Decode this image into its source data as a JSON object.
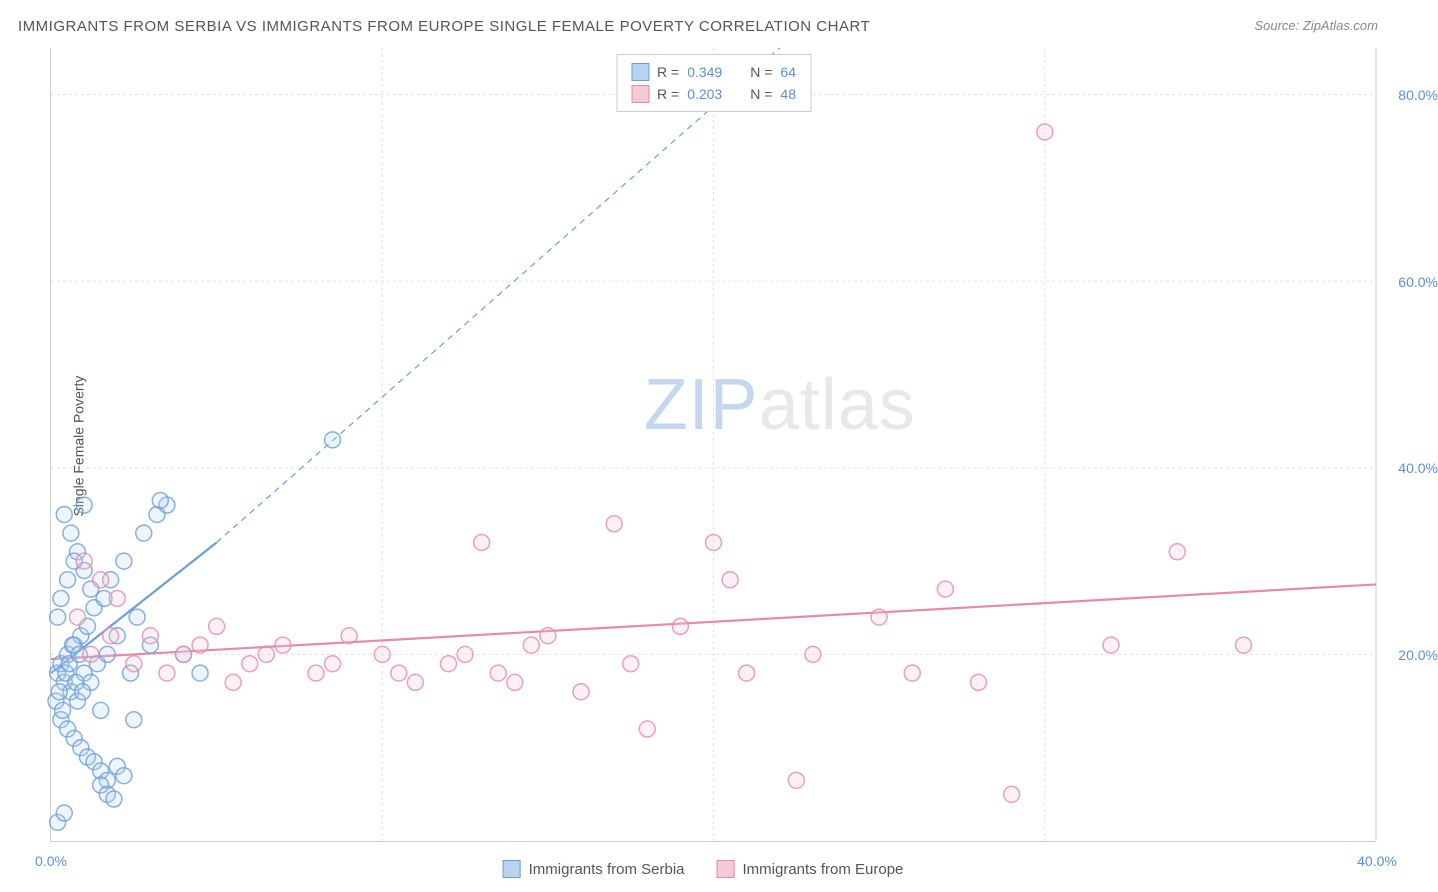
{
  "title": "IMMIGRANTS FROM SERBIA VS IMMIGRANTS FROM EUROPE SINGLE FEMALE POVERTY CORRELATION CHART",
  "source_prefix": "Source: ",
  "source": "ZipAtlas.com",
  "ylabel": "Single Female Poverty",
  "watermark_a": "ZIP",
  "watermark_b": "atlas",
  "chart": {
    "type": "scatter",
    "background_color": "#ffffff",
    "grid_color": "#e0e0e0",
    "axis_color": "#cccccc",
    "xlim": [
      0,
      40
    ],
    "ylim": [
      0,
      85
    ],
    "xtick_positions": [
      0,
      10,
      20,
      30,
      40
    ],
    "xtick_labels": [
      "0.0%",
      "",
      "",
      "",
      "40.0%"
    ],
    "ytick_positions": [
      20,
      40,
      60,
      80
    ],
    "ytick_labels": [
      "20.0%",
      "40.0%",
      "60.0%",
      "80.0%"
    ],
    "label_fontsize": 14,
    "label_color": "#5b8fd6",
    "marker_radius": 8,
    "marker_stroke_width": 1.5,
    "marker_fill_opacity": 0.25,
    "series": [
      {
        "name": "Immigrants from Serbia",
        "color": "#6a9ed8",
        "fill": "#b9d2ef",
        "R": 0.349,
        "N": 64,
        "trend": {
          "x1": 0,
          "y1": 18,
          "x2": 5,
          "y2": 32,
          "solid": true
        },
        "dashed_ext": {
          "x1": 5,
          "y1": 32,
          "x2": 22,
          "y2": 85
        },
        "points": [
          [
            0.2,
            18
          ],
          [
            0.3,
            19
          ],
          [
            0.4,
            17
          ],
          [
            0.5,
            20
          ],
          [
            0.6,
            16
          ],
          [
            0.7,
            21
          ],
          [
            0.8,
            15
          ],
          [
            0.9,
            22
          ],
          [
            1.0,
            18
          ],
          [
            1.1,
            23
          ],
          [
            1.2,
            17
          ],
          [
            1.3,
            25
          ],
          [
            1.4,
            19
          ],
          [
            1.5,
            14
          ],
          [
            1.6,
            26
          ],
          [
            1.7,
            20
          ],
          [
            0.3,
            13
          ],
          [
            0.5,
            12
          ],
          [
            0.7,
            11
          ],
          [
            0.9,
            10
          ],
          [
            1.1,
            9
          ],
          [
            1.3,
            8.5
          ],
          [
            1.5,
            7.5
          ],
          [
            1.7,
            6.5
          ],
          [
            1.8,
            28
          ],
          [
            2.0,
            22
          ],
          [
            2.2,
            30
          ],
          [
            2.4,
            18
          ],
          [
            2.6,
            24
          ],
          [
            2.8,
            33
          ],
          [
            3.0,
            21
          ],
          [
            3.2,
            35
          ],
          [
            3.5,
            36
          ],
          [
            0.4,
            35
          ],
          [
            0.6,
            33
          ],
          [
            0.8,
            31
          ],
          [
            1.0,
            29
          ],
          [
            1.2,
            27
          ],
          [
            1.5,
            6
          ],
          [
            1.7,
            5
          ],
          [
            1.9,
            4.5
          ],
          [
            2.0,
            8
          ],
          [
            2.2,
            7
          ],
          [
            2.5,
            13
          ],
          [
            0.2,
            24
          ],
          [
            0.3,
            26
          ],
          [
            0.5,
            28
          ],
          [
            0.7,
            30
          ],
          [
            1.0,
            36
          ],
          [
            3.3,
            36.5
          ],
          [
            4.0,
            20
          ],
          [
            4.5,
            18
          ],
          [
            0.2,
            2
          ],
          [
            0.4,
            3
          ],
          [
            8.5,
            43
          ],
          [
            0.15,
            15
          ],
          [
            0.25,
            16
          ],
          [
            0.35,
            14
          ],
          [
            0.45,
            18
          ],
          [
            0.55,
            19
          ],
          [
            0.65,
            21
          ],
          [
            0.75,
            17
          ],
          [
            0.85,
            20
          ],
          [
            0.95,
            16
          ]
        ]
      },
      {
        "name": "Immigrants from Europe",
        "color": "#e68aa6",
        "fill": "#f6c9d6",
        "R": 0.203,
        "N": 48,
        "trend": {
          "x1": 0,
          "y1": 19.5,
          "x2": 40,
          "y2": 27.5,
          "solid": true
        },
        "points": [
          [
            1.0,
            30
          ],
          [
            1.5,
            28
          ],
          [
            2.0,
            26
          ],
          [
            3.0,
            22
          ],
          [
            3.5,
            18
          ],
          [
            4.0,
            20
          ],
          [
            5.0,
            23
          ],
          [
            5.5,
            17
          ],
          [
            6.0,
            19
          ],
          [
            7.0,
            21
          ],
          [
            8.0,
            18
          ],
          [
            9.0,
            22
          ],
          [
            10.0,
            20
          ],
          [
            11.0,
            17
          ],
          [
            12.0,
            19
          ],
          [
            13.0,
            32
          ],
          [
            13.5,
            18
          ],
          [
            14.0,
            17
          ],
          [
            15.0,
            22
          ],
          [
            16.0,
            16
          ],
          [
            17.0,
            34
          ],
          [
            17.5,
            19
          ],
          [
            18.0,
            12
          ],
          [
            19.0,
            23
          ],
          [
            20.0,
            32
          ],
          [
            20.5,
            28
          ],
          [
            21.0,
            18
          ],
          [
            22.5,
            6.5
          ],
          [
            23.0,
            20
          ],
          [
            25.0,
            24
          ],
          [
            26.0,
            18
          ],
          [
            27.0,
            27
          ],
          [
            28.0,
            17
          ],
          [
            29.0,
            5
          ],
          [
            30.0,
            76
          ],
          [
            32.0,
            21
          ],
          [
            34.0,
            31
          ],
          [
            36.0,
            21
          ],
          [
            0.8,
            24
          ],
          [
            1.2,
            20
          ],
          [
            1.8,
            22
          ],
          [
            2.5,
            19
          ],
          [
            4.5,
            21
          ],
          [
            6.5,
            20
          ],
          [
            8.5,
            19
          ],
          [
            10.5,
            18
          ],
          [
            12.5,
            20
          ],
          [
            14.5,
            21
          ]
        ]
      }
    ]
  },
  "stats_labels": {
    "R": "R =",
    "N": "N ="
  },
  "legend": {
    "serbia": "Immigrants from Serbia",
    "europe": "Immigrants from Europe"
  }
}
